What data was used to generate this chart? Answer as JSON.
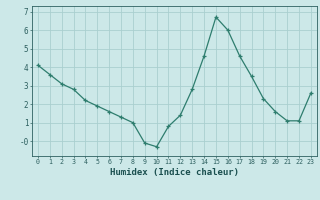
{
  "x": [
    0,
    1,
    2,
    3,
    4,
    5,
    6,
    7,
    8,
    9,
    10,
    11,
    12,
    13,
    14,
    15,
    16,
    17,
    18,
    19,
    20,
    21,
    22,
    23
  ],
  "y": [
    4.1,
    3.6,
    3.1,
    2.8,
    2.2,
    1.9,
    1.6,
    1.3,
    1.0,
    -0.1,
    -0.3,
    0.8,
    1.4,
    2.8,
    4.6,
    6.7,
    6.0,
    4.6,
    3.5,
    2.3,
    1.6,
    1.1,
    1.1,
    2.6
  ],
  "xlabel": "Humidex (Indice chaleur)",
  "line_color": "#2e7d6e",
  "marker": "+",
  "marker_size": 3,
  "bg_color": "#cce8e8",
  "grid_color": "#aacfcf",
  "tick_color": "#2e6060",
  "label_color": "#1a4f4f",
  "ylim": [
    -0.8,
    7.3
  ],
  "xlim": [
    -0.5,
    23.5
  ],
  "yticks": [
    0,
    1,
    2,
    3,
    4,
    5,
    6,
    7
  ],
  "ytick_labels": [
    "-0",
    "1",
    "2",
    "3",
    "4",
    "5",
    "6",
    "7"
  ],
  "xticks": [
    0,
    1,
    2,
    3,
    4,
    5,
    6,
    7,
    8,
    9,
    10,
    11,
    12,
    13,
    14,
    15,
    16,
    17,
    18,
    19,
    20,
    21,
    22,
    23
  ],
  "xtick_labels": [
    "0",
    "1",
    "2",
    "3",
    "4",
    "5",
    "6",
    "7",
    "8",
    "9",
    "10",
    "11",
    "12",
    "13",
    "14",
    "15",
    "16",
    "17",
    "18",
    "19",
    "20",
    "21",
    "22",
    "23"
  ]
}
